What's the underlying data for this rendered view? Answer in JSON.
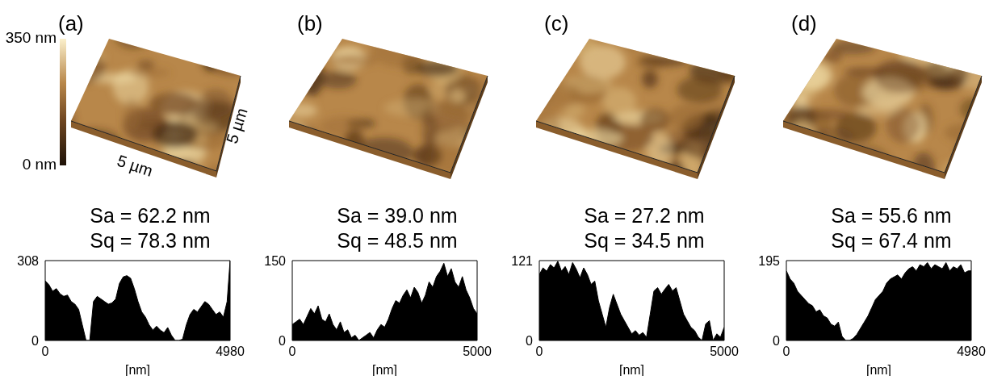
{
  "colorbar": {
    "range": [
      0,
      350
    ],
    "ticks": [
      {
        "value": 0,
        "label": "0 nm"
      },
      {
        "value": 350,
        "label": "350 nm"
      }
    ]
  },
  "scale_labels": [
    "5 µm",
    "5 µm"
  ],
  "chart_data": [
    {
      "type": "area",
      "title": "(a)",
      "annotations": [
        "Sa = 62.2 nm",
        "Sq = 78.3 nm"
      ],
      "xlabel": "[nm]",
      "color": "#000000",
      "xlim": [
        0,
        4980
      ],
      "xticks": [
        0,
        4980
      ],
      "ylim": [
        0,
        308
      ],
      "yticks": [
        0,
        308
      ],
      "x": [
        0,
        100,
        200,
        300,
        400,
        500,
        600,
        700,
        800,
        900,
        1000,
        1100,
        1200,
        1300,
        1400,
        1500,
        1600,
        1700,
        1800,
        1900,
        2000,
        2100,
        2200,
        2300,
        2400,
        2500,
        2600,
        2700,
        2800,
        2900,
        3000,
        3100,
        3200,
        3300,
        3400,
        3500,
        3600,
        3700,
        3800,
        3900,
        4000,
        4100,
        4200,
        4300,
        4400,
        4500,
        4600,
        4700,
        4800,
        4900,
        4980
      ],
      "values": [
        230,
        215,
        190,
        200,
        180,
        170,
        175,
        150,
        140,
        120,
        60,
        0,
        0,
        150,
        170,
        160,
        150,
        140,
        145,
        160,
        220,
        245,
        250,
        240,
        200,
        150,
        110,
        90,
        60,
        40,
        55,
        40,
        30,
        50,
        20,
        0,
        0,
        5,
        60,
        100,
        120,
        110,
        130,
        150,
        140,
        120,
        100,
        110,
        90,
        150,
        308
      ]
    },
    {
      "type": "area",
      "title": "(b)",
      "annotations": [
        "Sa = 39.0 nm",
        "Sq = 48.5 nm"
      ],
      "xlabel": "[nm]",
      "color": "#000000",
      "xlim": [
        0,
        5000
      ],
      "xticks": [
        0,
        5000
      ],
      "ylim": [
        0,
        150
      ],
      "yticks": [
        0,
        150
      ],
      "x": [
        0,
        100,
        200,
        300,
        400,
        500,
        600,
        700,
        800,
        900,
        1000,
        1100,
        1200,
        1300,
        1400,
        1500,
        1600,
        1700,
        1800,
        1900,
        2000,
        2100,
        2200,
        2300,
        2400,
        2500,
        2600,
        2700,
        2800,
        2900,
        3000,
        3100,
        3200,
        3300,
        3400,
        3500,
        3600,
        3700,
        3800,
        3900,
        4000,
        4100,
        4200,
        4300,
        4400,
        4500,
        4600,
        4700,
        4800,
        4900,
        5000
      ],
      "values": [
        30,
        35,
        40,
        30,
        45,
        60,
        50,
        65,
        40,
        35,
        50,
        30,
        20,
        35,
        15,
        20,
        5,
        10,
        0,
        5,
        10,
        15,
        5,
        20,
        30,
        25,
        40,
        60,
        75,
        70,
        85,
        95,
        80,
        100,
        90,
        70,
        85,
        110,
        100,
        120,
        130,
        145,
        120,
        135,
        110,
        100,
        120,
        95,
        80,
        60,
        50
      ]
    },
    {
      "type": "area",
      "title": "(c)",
      "annotations": [
        "Sa = 27.2 nm",
        "Sq = 34.5 nm"
      ],
      "xlabel": "[nm]",
      "color": "#000000",
      "xlim": [
        0,
        5000
      ],
      "xticks": [
        0,
        5000
      ],
      "ylim": [
        0,
        121
      ],
      "yticks": [
        0,
        121
      ],
      "x": [
        0,
        100,
        200,
        300,
        400,
        500,
        600,
        700,
        800,
        900,
        1000,
        1100,
        1200,
        1300,
        1400,
        1500,
        1600,
        1700,
        1800,
        1900,
        2000,
        2100,
        2200,
        2300,
        2400,
        2500,
        2600,
        2700,
        2800,
        2900,
        3000,
        3100,
        3200,
        3300,
        3400,
        3500,
        3600,
        3700,
        3800,
        3900,
        4000,
        4100,
        4200,
        4300,
        4400,
        4500,
        4600,
        4700,
        4800,
        4900,
        5000
      ],
      "values": [
        100,
        110,
        105,
        115,
        110,
        120,
        105,
        112,
        100,
        118,
        108,
        95,
        110,
        100,
        85,
        90,
        60,
        40,
        20,
        50,
        70,
        55,
        40,
        30,
        20,
        10,
        15,
        8,
        12,
        5,
        40,
        75,
        80,
        70,
        78,
        85,
        75,
        80,
        60,
        40,
        30,
        20,
        15,
        5,
        0,
        25,
        30,
        0,
        10,
        5,
        20
      ]
    },
    {
      "type": "area",
      "title": "(d)",
      "annotations": [
        "Sa = 55.6 nm",
        "Sq = 67.4 nm"
      ],
      "xlabel": "[nm]",
      "color": "#000000",
      "xlim": [
        0,
        4980
      ],
      "xticks": [
        0,
        4980
      ],
      "ylim": [
        0,
        195
      ],
      "yticks": [
        0,
        195
      ],
      "x": [
        0,
        100,
        200,
        300,
        400,
        500,
        600,
        700,
        800,
        900,
        1000,
        1100,
        1200,
        1300,
        1400,
        1500,
        1600,
        1700,
        1800,
        1900,
        2000,
        2100,
        2200,
        2300,
        2400,
        2500,
        2600,
        2700,
        2800,
        2900,
        3000,
        3100,
        3200,
        3300,
        3400,
        3500,
        3600,
        3700,
        3800,
        3900,
        4000,
        4100,
        4200,
        4300,
        4400,
        4500,
        4600,
        4700,
        4800,
        4900,
        4980
      ],
      "values": [
        170,
        150,
        140,
        120,
        110,
        100,
        90,
        85,
        70,
        75,
        60,
        55,
        40,
        35,
        45,
        10,
        0,
        0,
        5,
        15,
        30,
        45,
        60,
        80,
        100,
        110,
        120,
        140,
        150,
        155,
        160,
        150,
        165,
        175,
        180,
        170,
        185,
        180,
        190,
        175,
        185,
        180,
        175,
        190,
        170,
        180,
        175,
        185,
        165,
        170,
        170
      ]
    }
  ]
}
